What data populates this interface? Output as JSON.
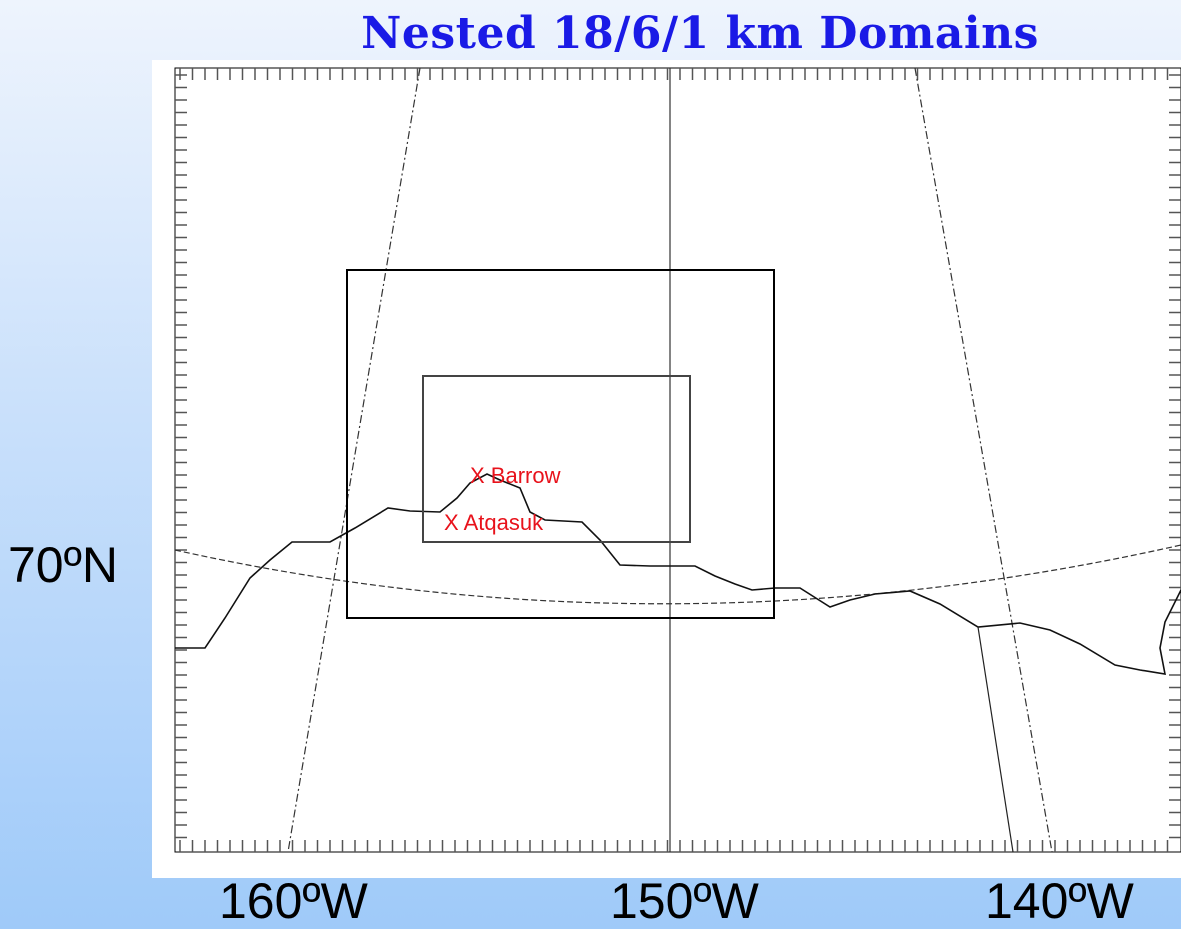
{
  "title": "Nested 18/6/1 km Domains",
  "latitude_labels": [
    "70ºN"
  ],
  "longitude_labels": [
    "160ºW",
    "150ºW",
    "140ºW"
  ],
  "stations": [
    {
      "name": "Barrow",
      "label": "X Barrow"
    },
    {
      "name": "Atqasuk",
      "label": "X Atqasuk"
    }
  ],
  "colors": {
    "title": "#1a1ae6",
    "station_labels": "#e8121b",
    "lines": "#000000"
  }
}
